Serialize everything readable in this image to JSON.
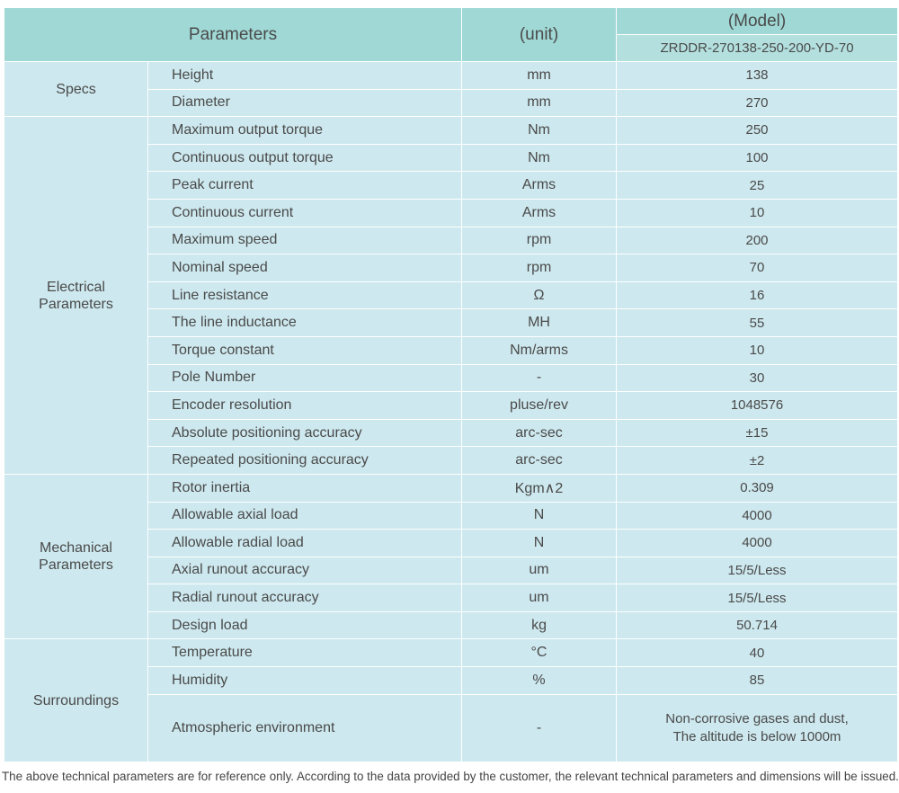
{
  "header": {
    "parameters": "Parameters",
    "unit": "(unit)",
    "model_label": "(Model)",
    "model": "ZRDDR-270138-250-200-YD-70"
  },
  "groups": [
    {
      "name": "Specs",
      "rows": [
        [
          "Height",
          "mm",
          "138"
        ],
        [
          "Diameter",
          "mm",
          "270"
        ]
      ]
    },
    {
      "name": "Electrical Parameters",
      "rows": [
        [
          "Maximum output torque",
          "Nm",
          "250"
        ],
        [
          "Continuous output torque",
          "Nm",
          "100"
        ],
        [
          "Peak current",
          "Arms",
          "25"
        ],
        [
          "Continuous current",
          "Arms",
          "10"
        ],
        [
          "Maximum speed",
          "rpm",
          "200"
        ],
        [
          "Nominal speed",
          "rpm",
          "70"
        ],
        [
          "Line resistance",
          "Ω",
          "16"
        ],
        [
          "The line inductance",
          "MH",
          "55"
        ],
        [
          "Torque constant",
          "Nm/arms",
          "10"
        ],
        [
          "Pole Number",
          "-",
          "30"
        ],
        [
          "Encoder resolution",
          "pluse/rev",
          "1048576"
        ],
        [
          "Absolute positioning accuracy",
          "arc-sec",
          "±15"
        ],
        [
          "Repeated positioning accuracy",
          "arc-sec",
          "±2"
        ]
      ]
    },
    {
      "name": "Mechanical Parameters",
      "rows": [
        [
          "Rotor inertia",
          "Kgm∧2",
          "0.309"
        ],
        [
          "Allowable axial load",
          "N",
          "4000"
        ],
        [
          "Allowable radial load",
          "N",
          "4000"
        ],
        [
          "Axial runout accuracy",
          "um",
          "15/5/Less"
        ],
        [
          "Radial runout accuracy",
          "um",
          "15/5/Less"
        ],
        [
          "Design load",
          "kg",
          "50.714"
        ]
      ]
    },
    {
      "name": "Surroundings",
      "rows": [
        [
          "Temperature",
          "°C",
          "40"
        ],
        [
          "Humidity",
          "%",
          "85"
        ],
        [
          "Atmospheric environment",
          "-",
          [
            "Non-corrosive gases and dust,",
            "The altitude is below 1000m"
          ]
        ]
      ]
    }
  ],
  "footnote": "The above technical parameters are for reference only. According to the data provided by the customer, the relevant technical parameters and dimensions will be issued."
}
